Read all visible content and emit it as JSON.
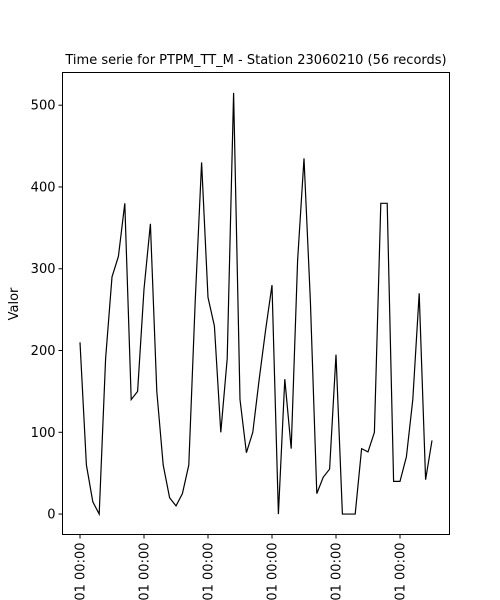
{
  "chart_data": {
    "type": "line",
    "title": "Time serie for PTPM_TT_M - Station 23060210 (56 records)",
    "xlabel": "",
    "ylabel": "Valor",
    "ylim": [
      -25,
      540
    ],
    "yticks": [
      0,
      100,
      200,
      300,
      400,
      500
    ],
    "xtick_labels": [
      "01 00:00",
      "01 00:00",
      "01 00:00",
      "01 00:00",
      "01 00:00",
      "01 00:00"
    ],
    "grid": false,
    "legend": "none",
    "line_color": "#000000",
    "series": [
      {
        "values": [
          210,
          60,
          15,
          0,
          190,
          290,
          315,
          380,
          140,
          150,
          275,
          355,
          150,
          60,
          20,
          10,
          25,
          60,
          260,
          430,
          265,
          230,
          100,
          190,
          515,
          140,
          75,
          100,
          165,
          225,
          280,
          0,
          165,
          80,
          310,
          435,
          260,
          25,
          45,
          55,
          195,
          0,
          0,
          0,
          80,
          76,
          100,
          380,
          380,
          40,
          40,
          70,
          140,
          270,
          42,
          90
        ]
      }
    ]
  }
}
